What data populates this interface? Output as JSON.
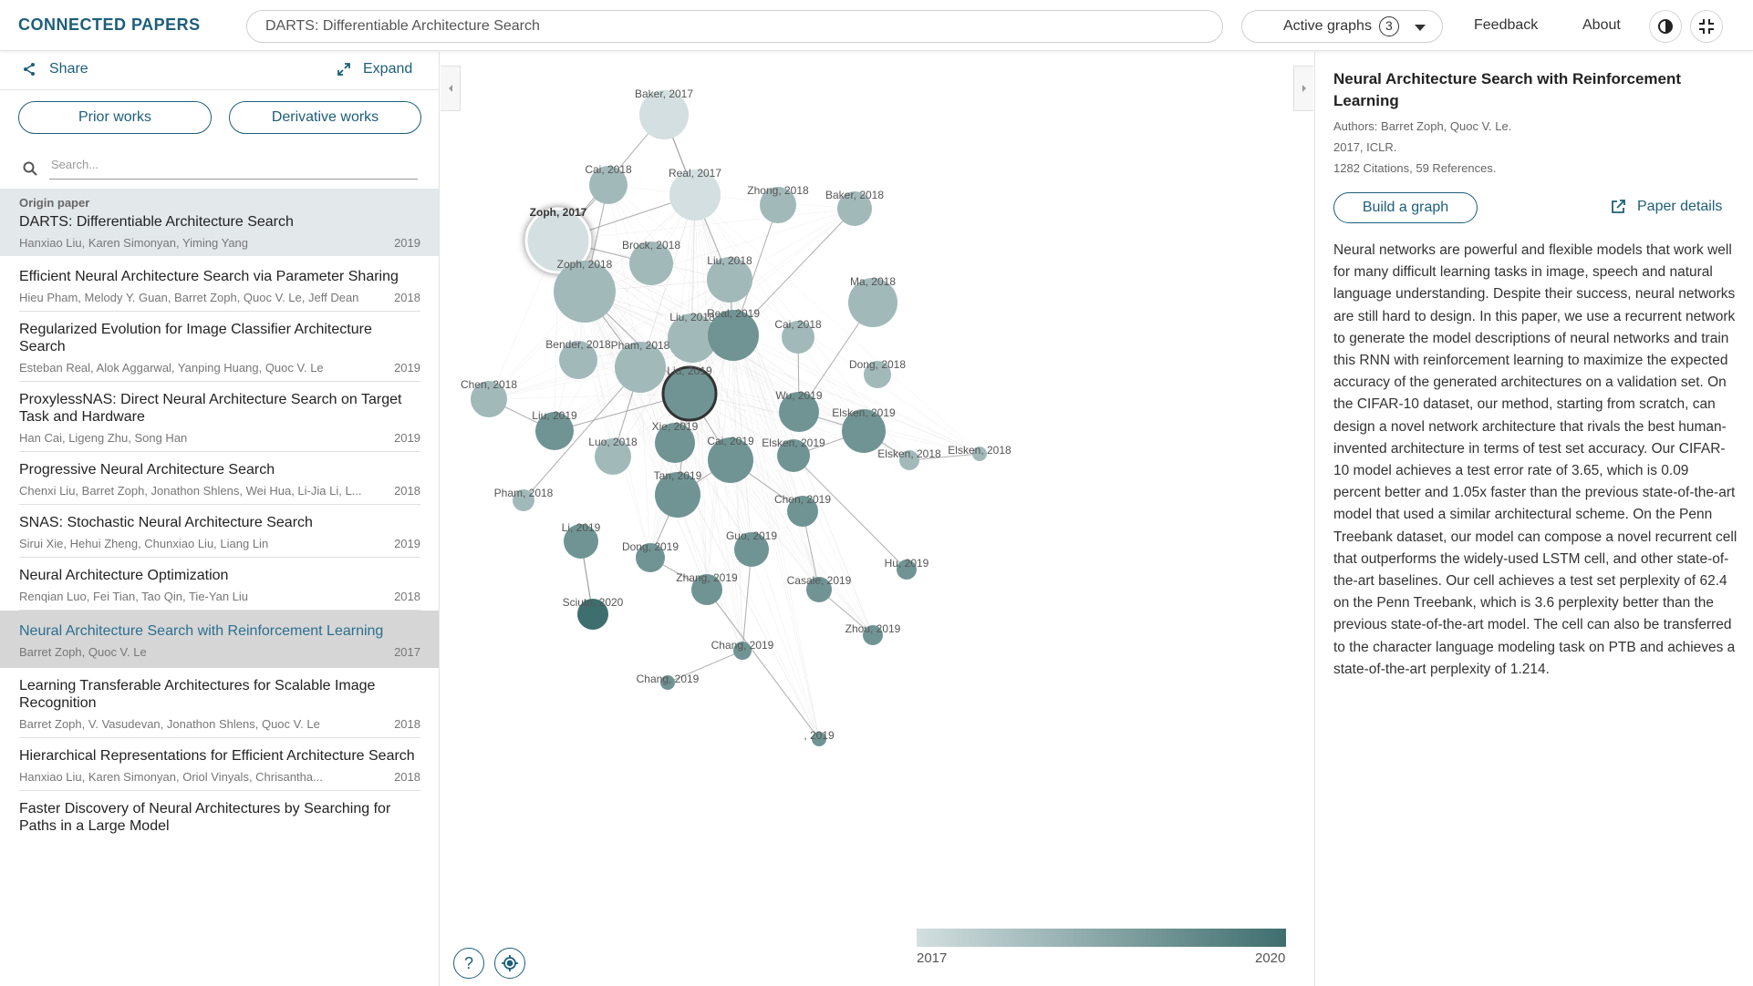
{
  "header": {
    "logo": "CONNECTED PAPERS",
    "search_value": "DARTS: Differentiable Architecture Search",
    "active_graphs_label": "Active graphs",
    "active_graphs_count": "3",
    "feedback": "Feedback",
    "about": "About"
  },
  "left": {
    "share": "Share",
    "expand": "Expand",
    "prior_works": "Prior works",
    "derivative_works": "Derivative works",
    "search_placeholder": "Search...",
    "origin_label": "Origin paper",
    "papers": [
      {
        "title": "DARTS: Differentiable Architecture Search",
        "authors": "Hanxiao Liu, Karen Simonyan, Yiming Yang",
        "year": "2019"
      },
      {
        "title": "Efficient Neural Architecture Search via Parameter Sharing",
        "authors": "Hieu Pham, Melody Y. Guan, Barret Zoph, Quoc V. Le, Jeff Dean",
        "year": "2018"
      },
      {
        "title": "Regularized Evolution for Image Classifier Architecture Search",
        "authors": "Esteban Real, Alok Aggarwal, Yanping Huang, Quoc V. Le",
        "year": "2019"
      },
      {
        "title": "ProxylessNAS: Direct Neural Architecture Search on Target Task and Hardware",
        "authors": "Han Cai, Ligeng Zhu, Song Han",
        "year": "2019"
      },
      {
        "title": "Progressive Neural Architecture Search",
        "authors": "Chenxi Liu, Barret Zoph, Jonathon Shlens, Wei Hua, Li-Jia Li, L...",
        "year": "2018"
      },
      {
        "title": "SNAS: Stochastic Neural Architecture Search",
        "authors": "Sirui Xie, Hehui Zheng, Chunxiao Liu, Liang Lin",
        "year": "2019"
      },
      {
        "title": "Neural Architecture Optimization",
        "authors": "Renqian Luo, Fei Tian, Tao Qin, Tie-Yan Liu",
        "year": "2018"
      },
      {
        "title": "Neural Architecture Search with Reinforcement Learning",
        "authors": "Barret Zoph, Quoc V. Le",
        "year": "2017"
      },
      {
        "title": "Learning Transferable Architectures for Scalable Image Recognition",
        "authors": "Barret Zoph, V. Vasudevan, Jonathon Shlens, Quoc V. Le",
        "year": "2018"
      },
      {
        "title": "Hierarchical Representations for Efficient Architecture Search",
        "authors": "Hanxiao Liu, Karen Simonyan, Oriol Vinyals, Chrisantha...",
        "year": "2018"
      },
      {
        "title": "Faster Discovery of Neural Architectures by Searching for Paths in a Large Model",
        "authors": "",
        "year": ""
      }
    ]
  },
  "graph": {
    "colors": {
      "old": "#d3dfe0",
      "new": "#3f6e6e"
    },
    "legend_min": "2017",
    "legend_max": "2020",
    "help": "?",
    "nodes": [
      {
        "label": "Baker, 2017",
        "year": 2017
      },
      {
        "label": "Cai, 2018",
        "year": 2018
      },
      {
        "label": "Real, 2017",
        "year": 2017
      },
      {
        "label": "Zhong, 2018",
        "year": 2018
      },
      {
        "label": "Baker, 2018",
        "year": 2018
      },
      {
        "label": "Zoph, 2017",
        "year": 2017
      },
      {
        "label": "Brock, 2018",
        "year": 2018
      },
      {
        "label": "Liu, 2018",
        "year": 2018
      },
      {
        "label": "Zoph, 2018",
        "year": 2018
      },
      {
        "label": "Ma, 2018",
        "year": 2018
      },
      {
        "label": "Liu, 2018",
        "year": 2018
      },
      {
        "label": "Real, 2019",
        "year": 2019
      },
      {
        "label": "Cai, 2018",
        "year": 2018
      },
      {
        "label": "Bender, 2018",
        "year": 2018
      },
      {
        "label": "Pham, 2018",
        "year": 2018
      },
      {
        "label": "Dong, 2018",
        "year": 2018
      },
      {
        "label": "Chen, 2018",
        "year": 2018
      },
      {
        "label": "Liu, 2019",
        "year": 2019
      },
      {
        "label": "Wu, 2019",
        "year": 2019
      },
      {
        "label": "Liu, 2019",
        "year": 2019
      },
      {
        "label": "Elsken, 2019",
        "year": 2019
      },
      {
        "label": "Xie, 2019",
        "year": 2019
      },
      {
        "label": "Elsken, 2018",
        "year": 2018
      },
      {
        "label": "Luo, 2018",
        "year": 2018
      },
      {
        "label": "Cai, 2019",
        "year": 2019
      },
      {
        "label": "Elsken, 2019",
        "year": 2019
      },
      {
        "label": "Elsken, 2018",
        "year": 2018
      },
      {
        "label": "Pham, 2018",
        "year": 2018
      },
      {
        "label": "Tan, 2019",
        "year": 2019
      },
      {
        "label": "Chen, 2019",
        "year": 2019
      },
      {
        "label": "Li, 2019",
        "year": 2019
      },
      {
        "label": "Dong, 2019",
        "year": 2019
      },
      {
        "label": "Guo, 2019",
        "year": 2019
      },
      {
        "label": "Hu, 2019",
        "year": 2019
      },
      {
        "label": "Zhang, 2019",
        "year": 2019
      },
      {
        "label": "Casale, 2019",
        "year": 2019
      },
      {
        "label": "Sciuto, 2020",
        "year": 2020
      },
      {
        "label": "Zhou, 2019",
        "year": 2019
      },
      {
        "label": "Chang, 2019",
        "year": 2019
      },
      {
        "label": "Chang, 2019",
        "year": 2019
      },
      {
        "label": ", 2019",
        "year": 2019
      }
    ]
  },
  "detail": {
    "title": "Neural Architecture Search with Reinforcement Learning",
    "authors": "Authors: Barret Zoph, Quoc V. Le.",
    "venue": "2017, ICLR.",
    "citations": "1282 Citations, 59 References.",
    "build_graph": "Build a graph",
    "paper_details": "Paper details",
    "abstract": "Neural networks are powerful and flexible models that work well for many difficult learning tasks in image, speech and natural language understanding. Despite their success, neural networks are still hard to design. In this paper, we use a recurrent network to generate the model descriptions of neural networks and train this RNN with reinforcement learning to maximize the expected accuracy of the generated architectures on a validation set. On the CIFAR-10 dataset, our method, starting from scratch, can design a novel network architecture that rivals the best human-invented architecture in terms of test set accuracy. Our CIFAR-10 model achieves a test error rate of 3.65, which is 0.09 percent better and 1.05x faster than the previous state-of-the-art model that used a similar architectural scheme. On the Penn Treebank dataset, our model can compose a novel recurrent cell that outperforms the widely-used LSTM cell, and other state-of-the-art baselines. Our cell achieves a test set perplexity of 62.4 on the Penn Treebank, which is 3.6 perplexity better than the previous state-of-the-art model. The cell can also be transferred to the character language modeling task on PTB and achieves a state-of-the-art perplexity of 1.214."
  }
}
